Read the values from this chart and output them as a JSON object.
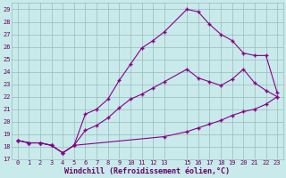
{
  "xlabel": "Windchill (Refroidissement éolien,°C)",
  "bg_color": "#c8eaea",
  "line_color": "#880088",
  "grid_color": "#99bbbb",
  "ylim": [
    17,
    29.5
  ],
  "xlim": [
    -0.5,
    23.5
  ],
  "yticks": [
    17,
    18,
    19,
    20,
    21,
    22,
    23,
    24,
    25,
    26,
    27,
    28,
    29
  ],
  "xticks": [
    0,
    1,
    2,
    3,
    4,
    5,
    6,
    7,
    8,
    9,
    10,
    11,
    12,
    13,
    15,
    16,
    17,
    18,
    19,
    20,
    21,
    22,
    23
  ],
  "line1_x": [
    0,
    1,
    2,
    3,
    4,
    5,
    6,
    7,
    8,
    9,
    10,
    11,
    12,
    13,
    15,
    16,
    17,
    18,
    19,
    20,
    21,
    22,
    23
  ],
  "line1_y": [
    18.5,
    18.3,
    18.3,
    18.1,
    17.5,
    18.1,
    20.6,
    21.0,
    21.8,
    23.3,
    24.6,
    25.9,
    26.5,
    27.2,
    29.0,
    28.8,
    27.8,
    27.0,
    26.5,
    25.5,
    25.3,
    25.3,
    22.3
  ],
  "line2_x": [
    0,
    1,
    2,
    3,
    4,
    5,
    6,
    7,
    8,
    9,
    10,
    11,
    12,
    13,
    15,
    16,
    17,
    18,
    19,
    20,
    21,
    22,
    23
  ],
  "line2_y": [
    18.5,
    18.3,
    18.3,
    18.1,
    17.5,
    18.1,
    19.3,
    19.7,
    20.3,
    21.1,
    21.8,
    22.2,
    22.7,
    23.2,
    24.2,
    23.5,
    23.2,
    22.9,
    23.4,
    24.2,
    23.1,
    22.5,
    22.0
  ],
  "line3_x": [
    0,
    1,
    2,
    3,
    4,
    5,
    13,
    15,
    16,
    17,
    18,
    19,
    20,
    21,
    22,
    23
  ],
  "line3_y": [
    18.5,
    18.3,
    18.3,
    18.1,
    17.5,
    18.1,
    18.8,
    19.2,
    19.5,
    19.8,
    20.1,
    20.5,
    20.8,
    21.0,
    21.4,
    22.0
  ]
}
